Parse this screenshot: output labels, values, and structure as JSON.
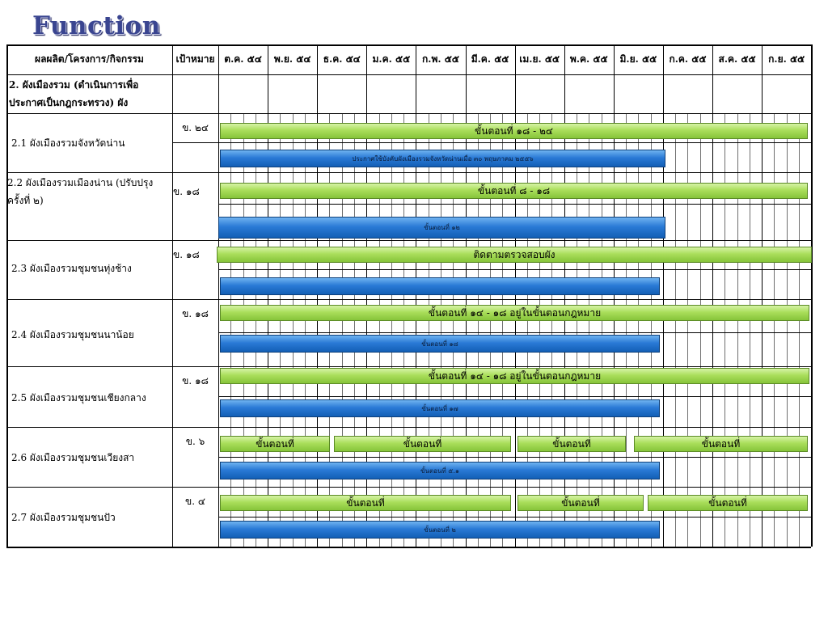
{
  "title": "Function",
  "header": {
    "activity": "ผลผลิต/โครงการ/กิจกรรม",
    "target": "เป้าหมาย",
    "months": [
      "ต.ค. ๕๔",
      "พ.ย. ๕๔",
      "ธ.ค. ๕๔",
      "ม.ค. ๕๕",
      "ก.พ. ๕๕",
      "มี.ค. ๕๕",
      "เม.ย. ๕๕",
      "พ.ค. ๕๕",
      "มิ.ย. ๕๕",
      "ก.ค. ๕๕",
      "ส.ค. ๕๕",
      "ก.ย. ๕๕"
    ]
  },
  "section": {
    "line1": "2. ผังเมืองรวม (ดำเนินการเพื่อ",
    "line2": "ประกาศเป็นกฎกระทรวง) ผัง"
  },
  "rows": [
    {
      "line1": "2.1 ผังเมืองรวมจังหวัดน่าน",
      "line2": "",
      "target": "ข. ๒๔",
      "green": [
        {
          "label": "ขั้นตอนที่  ๑๘ - ๒๔"
        }
      ],
      "blue": "ประกาศใช้บังคับผังเมืองรวมจังหวัดน่านเมื่อ ๓๐ พฤษภาคม ๒๕๕๖"
    },
    {
      "line1": "2.2 ผังเมืองรวมเมืองน่าน (ปรับปรุง",
      "line2": "ครั้งที่ ๒)",
      "target": "ข. ๑๘",
      "green": [
        {
          "label": "ขั้นตอนที่  ๘ - ๑๘"
        }
      ],
      "blue": "ขั้นตอนที่ ๑๒"
    },
    {
      "line1": "2.3  ผังเมืองรวมชุมชนทุ่งช้าง",
      "line2": "",
      "target": "ข. ๑๘",
      "green": [
        {
          "label": "ติดตามตรวจสอบผัง"
        }
      ],
      "blue": ""
    },
    {
      "line1": "2.4 ผังเมืองรวมชุมชนนาน้อย",
      "line2": "",
      "target": "ข. ๑๘",
      "green": [
        {
          "label": "ขั้นตอนที่ ๑๔ - ๑๘ อยู่ในขั้นตอนกฎหมาย"
        }
      ],
      "blue": "ขั้นตอนที่ ๑๘"
    },
    {
      "line1": "2.5 ผังเมืองรวมชุมชนเชียงกลาง",
      "line2": "",
      "target": "ข. ๑๘",
      "green": [
        {
          "label": "ขั้นตอนที่ ๑๔ - ๑๘ อยู่ในขั้นตอนกฎหมาย"
        }
      ],
      "blue": "ขั้นตอนที่ ๑๗"
    },
    {
      "line1": "2.6 ผังเมืองรวมชุมชนเวียงสา",
      "line2": "",
      "target": "ข. ๖",
      "green": [
        {
          "label": "ขั้นตอนที่"
        },
        {
          "label": "ขั้นตอนที่"
        },
        {
          "label": "ขั้นตอนที่"
        },
        {
          "label": "ขั้นตอนที่"
        }
      ],
      "blue": "ขั้นตอนที่ ๕.๑"
    },
    {
      "line1": "2.7 ผังเมืองรวมชุมชนปัว",
      "line2": "",
      "target": "ข. ๔",
      "green": [
        {
          "label": "ขั้นตอนที่"
        },
        {
          "label": "ขั้นตอนที่"
        },
        {
          "label": "ขั้นตอนที่"
        }
      ],
      "blue": "ขั้นตอนที่ ๒"
    }
  ]
}
